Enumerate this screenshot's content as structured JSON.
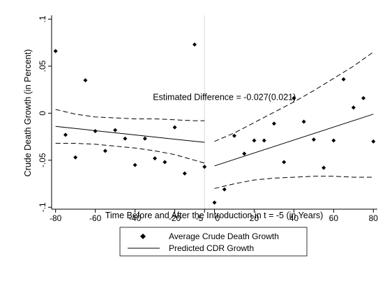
{
  "chart_data": {
    "type": "scatter",
    "xlabel": "Time Before and After the Introduction in t = -5 (in Years)",
    "ylabel": "Crude Death Growth (in Percent)",
    "xlim": [
      -82,
      82
    ],
    "ylim": [
      -0.102,
      0.104
    ],
    "x_ticks": [
      -80,
      -60,
      -40,
      -20,
      -5,
      0,
      20,
      40,
      60,
      80
    ],
    "x_tick_labels": [
      "-80",
      "-60",
      "-40",
      "-20",
      "-5",
      "0",
      "20",
      "40",
      "60",
      "80"
    ],
    "y_ticks": [
      -0.1,
      -0.05,
      0,
      0.05,
      0.1
    ],
    "y_tick_labels": [
      "-.1",
      "-.05",
      "0",
      ".05",
      ".1"
    ],
    "grid": false,
    "cutoff_x": -5,
    "annotation": {
      "text": "Estimated Difference = -0.027(0.021)",
      "x": 5,
      "y": 0.017
    },
    "series": [
      {
        "name": "Average Crude Death Growth",
        "kind": "points",
        "color": "#000000",
        "x": [
          -80,
          -75,
          -70,
          -65,
          -60,
          -55,
          -50,
          -45,
          -40,
          -35,
          -30,
          -25,
          -20,
          -15,
          -10,
          -5,
          0,
          5,
          10,
          15,
          20,
          25,
          30,
          35,
          40,
          45,
          50,
          55,
          60,
          65,
          70,
          75,
          80
        ],
        "y": [
          0.066,
          -0.023,
          -0.047,
          0.035,
          -0.019,
          -0.04,
          -0.018,
          -0.027,
          -0.055,
          -0.027,
          -0.048,
          -0.052,
          -0.015,
          -0.064,
          0.073,
          -0.057,
          -0.095,
          -0.081,
          -0.024,
          -0.043,
          -0.029,
          -0.029,
          -0.011,
          -0.052,
          0.016,
          -0.009,
          -0.028,
          -0.058,
          -0.029,
          0.036,
          0.006,
          0.016,
          -0.03
        ]
      },
      {
        "name": "Predicted CDR Growth",
        "kind": "line",
        "color": "#000000",
        "segments": [
          {
            "x": [
              -80,
              -5
            ],
            "y": [
              -0.014,
              -0.031
            ]
          },
          {
            "x": [
              0,
              80
            ],
            "y": [
              -0.056,
              -0.001
            ]
          }
        ]
      },
      {
        "kind": "band",
        "color": "#000000",
        "segments": [
          {
            "x": [
              -80,
              -70,
              -60,
              -50,
              -40,
              -30,
              -20,
              -10,
              -5
            ],
            "y": [
              0.004,
              -0.001,
              -0.004,
              -0.005,
              -0.006,
              -0.006,
              -0.007,
              -0.008,
              -0.008
            ]
          },
          {
            "x": [
              -80,
              -70,
              -60,
              -50,
              -40,
              -30,
              -20,
              -10,
              -5
            ],
            "y": [
              -0.032,
              -0.032,
              -0.033,
              -0.035,
              -0.037,
              -0.04,
              -0.044,
              -0.05,
              -0.053
            ]
          },
          {
            "x": [
              0,
              10,
              20,
              30,
              40,
              50,
              60,
              70,
              80
            ],
            "y": [
              -0.03,
              -0.021,
              -0.01,
              0.001,
              0.012,
              0.024,
              0.037,
              0.05,
              0.065
            ]
          },
          {
            "x": [
              0,
              10,
              20,
              30,
              40,
              50,
              60,
              70,
              80
            ],
            "y": [
              -0.08,
              -0.075,
              -0.071,
              -0.069,
              -0.068,
              -0.067,
              -0.067,
              -0.068,
              -0.068
            ]
          }
        ]
      }
    ],
    "legend": {
      "placement": "bottom-center",
      "entries": [
        {
          "label": "Average Crude Death Growth",
          "symbol": "diamond"
        },
        {
          "label": "Predicted CDR Growth",
          "symbol": "solid-line"
        }
      ]
    }
  }
}
